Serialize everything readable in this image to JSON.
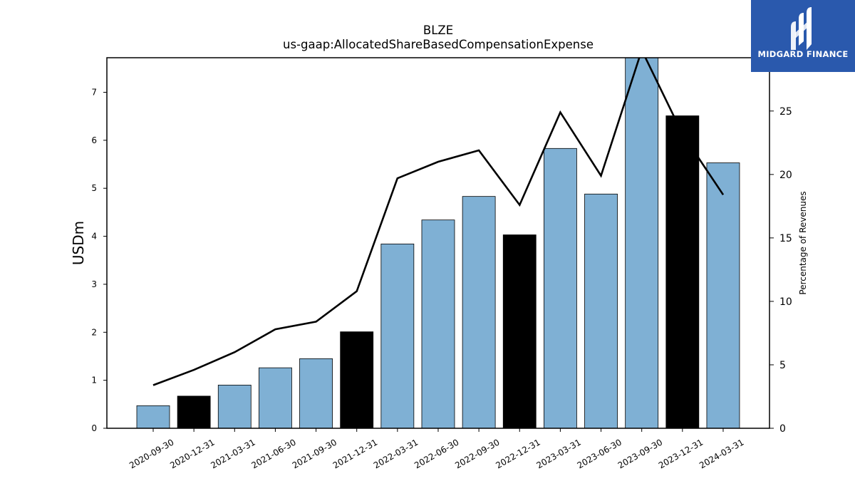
{
  "logo": {
    "text": "MIDGARD FINANCE",
    "icon": "midgard-logo-icon",
    "background": "#2a59ad"
  },
  "chart_data": {
    "type": "bar",
    "title": "BLZE",
    "subtitle": "us-gaap:AllocatedShareBasedCompensationExpense",
    "ylabel": "USDm",
    "y2label": "Percentage of Revenues",
    "ylim": [
      0,
      7.72
    ],
    "y2lim": [
      0,
      29.2
    ],
    "yticks": [
      0,
      1,
      2,
      3,
      4,
      5,
      6,
      7
    ],
    "y2ticks": [
      0,
      5,
      10,
      15,
      20,
      25
    ],
    "grid": false,
    "categories": [
      "2020-09-30",
      "2020-12-31",
      "2021-03-31",
      "2021-06-30",
      "2021-09-30",
      "2021-12-31",
      "2022-03-31",
      "2022-06-30",
      "2022-09-30",
      "2022-12-31",
      "2023-03-31",
      "2023-06-30",
      "2023-09-30",
      "2023-12-31",
      "2024-03-31"
    ],
    "values": [
      0.47,
      0.67,
      0.9,
      1.26,
      1.45,
      2.01,
      3.84,
      4.34,
      4.83,
      4.03,
      5.83,
      4.88,
      7.8,
      6.51,
      5.53
    ],
    "bar_colors": [
      "#7fb0d4",
      "#000000",
      "#7fb0d4",
      "#7fb0d4",
      "#7fb0d4",
      "#000000",
      "#7fb0d4",
      "#7fb0d4",
      "#7fb0d4",
      "#000000",
      "#7fb0d4",
      "#7fb0d4",
      "#7fb0d4",
      "#000000",
      "#7fb0d4"
    ],
    "line": {
      "values": [
        3.4,
        4.6,
        6.0,
        7.8,
        8.4,
        10.8,
        19.7,
        21.0,
        21.9,
        17.6,
        24.9,
        19.9,
        29.8,
        23.2,
        18.4
      ],
      "color": "#000000"
    }
  }
}
